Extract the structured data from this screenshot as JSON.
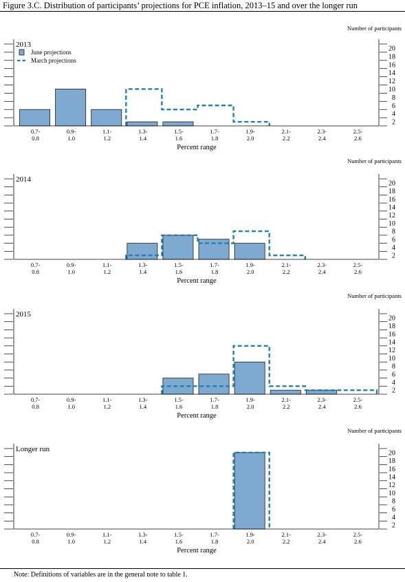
{
  "figure": {
    "title": "Figure 3.C. Distribution of participants’ projections for PCE inflation, 2013–15 and over the longer run",
    "note": "Note: Definitions of variables are in the general note to table 1."
  },
  "colors": {
    "june_fill": "#7ea9d1",
    "march_line": "#1f83b0",
    "axis": "#000000"
  },
  "chart_data": [
    {
      "type": "bar",
      "panel_title": "2013",
      "ylabel": "Number of participants",
      "xlabel": "Percent range",
      "ylim": [
        0,
        20
      ],
      "yticks": [
        2,
        4,
        6,
        8,
        10,
        12,
        14,
        16,
        18,
        20
      ],
      "categories": [
        "0.7-\n0.8",
        "0.9-\n1.0",
        "1.1-\n1.2",
        "1.3-\n1.4",
        "1.5-\n1.6",
        "1.7-\n1.8",
        "1.9-\n2.0",
        "2.1-\n2.2",
        "2.3-\n2.4",
        "2.5-\n2.6"
      ],
      "legend": [
        "June projections",
        "March projections"
      ],
      "series": [
        {
          "name": "June projections",
          "values": [
            4,
            9,
            4,
            1,
            1,
            0,
            0,
            0,
            0,
            0
          ]
        },
        {
          "name": "March projections",
          "values": [
            0,
            0,
            0,
            9,
            4,
            5,
            1,
            0,
            0,
            0
          ]
        }
      ]
    },
    {
      "type": "bar",
      "panel_title": "2014",
      "ylabel": "Number of participants",
      "xlabel": "Percent range",
      "ylim": [
        0,
        20
      ],
      "yticks": [
        2,
        4,
        6,
        8,
        10,
        12,
        14,
        16,
        18,
        20
      ],
      "categories": [
        "0.7-\n0.8",
        "0.9-\n1.0",
        "1.1-\n1.2",
        "1.3-\n1.4",
        "1.5-\n1.6",
        "1.7-\n1.8",
        "1.9-\n2.0",
        "2.1-\n2.2",
        "2.3-\n2.4",
        "2.5-\n2.6"
      ],
      "series": [
        {
          "name": "June projections",
          "values": [
            0,
            0,
            0,
            4,
            6,
            5,
            4,
            0,
            0,
            0
          ]
        },
        {
          "name": "March projections",
          "values": [
            0,
            0,
            0,
            1,
            6,
            4,
            7,
            1,
            0,
            0
          ]
        }
      ]
    },
    {
      "type": "bar",
      "panel_title": "2015",
      "ylabel": "Number of participants",
      "xlabel": "Percent range",
      "ylim": [
        0,
        20
      ],
      "yticks": [
        2,
        4,
        6,
        8,
        10,
        12,
        14,
        16,
        18,
        20
      ],
      "categories": [
        "0.7-\n0.8",
        "0.9-\n1.0",
        "1.1-\n1.2",
        "1.3-\n1.4",
        "1.5-\n1.6",
        "1.7-\n1.8",
        "1.9-\n2.0",
        "2.1-\n2.2",
        "2.3-\n2.4",
        "2.5-\n2.6"
      ],
      "series": [
        {
          "name": "June projections",
          "values": [
            0,
            0,
            0,
            0,
            4,
            5,
            8,
            1,
            1,
            0
          ]
        },
        {
          "name": "March projections",
          "values": [
            0,
            0,
            0,
            0,
            2,
            2,
            12,
            2,
            1,
            1
          ]
        }
      ]
    },
    {
      "type": "bar",
      "panel_title": "Longer run",
      "ylabel": "Number of participants",
      "xlabel": "Percent range",
      "ylim": [
        0,
        20
      ],
      "yticks": [
        2,
        4,
        6,
        8,
        10,
        12,
        14,
        16,
        18,
        20
      ],
      "categories": [
        "0.7-\n0.8",
        "0.9-\n1.0",
        "1.1-\n1.2",
        "1.3-\n1.4",
        "1.5-\n1.6",
        "1.7-\n1.8",
        "1.9-\n2.0",
        "2.1-\n2.2",
        "2.3-\n2.4",
        "2.5-\n2.6"
      ],
      "series": [
        {
          "name": "June projections",
          "values": [
            0,
            0,
            0,
            0,
            0,
            0,
            19,
            0,
            0,
            0
          ]
        },
        {
          "name": "March projections",
          "values": [
            0,
            0,
            0,
            0,
            0,
            0,
            19,
            0,
            0,
            0
          ]
        }
      ]
    }
  ]
}
